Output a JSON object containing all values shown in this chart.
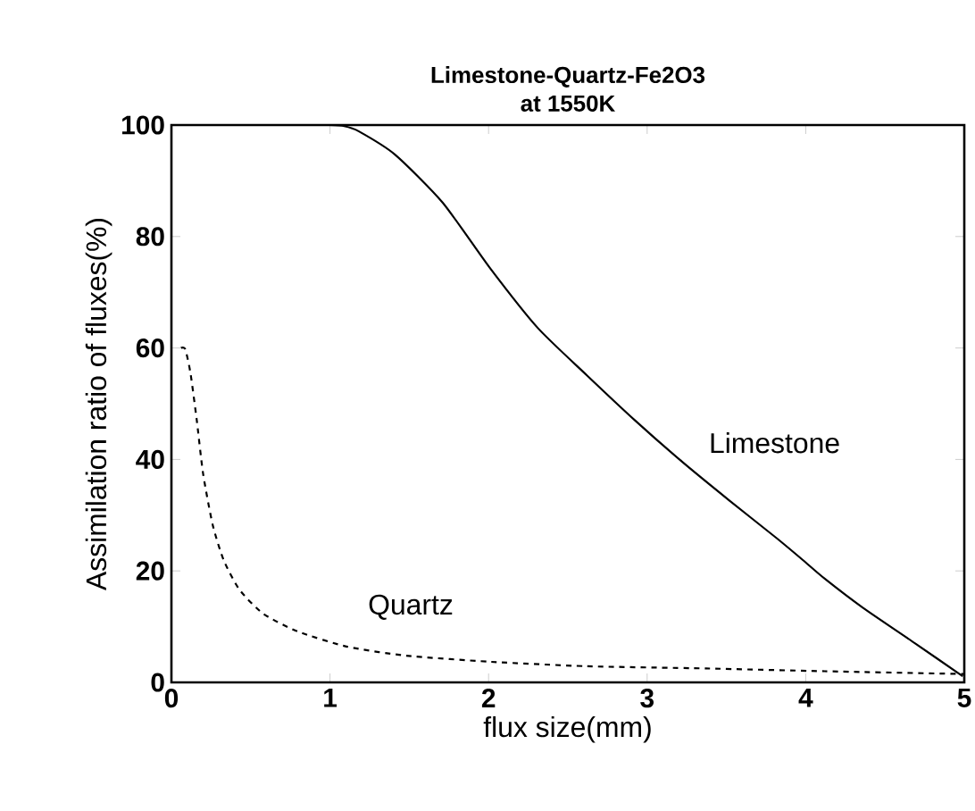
{
  "chart_data": {
    "type": "line",
    "title": "Limestone-Quartz-Fe2O3",
    "subtitle": "at 1550K",
    "xlabel": "flux size(mm)",
    "ylabel": "Assimilation ratio of fluxes(%)",
    "xlim": [
      0,
      5
    ],
    "ylim": [
      0,
      100
    ],
    "xticks": [
      0,
      1,
      2,
      3,
      4,
      5
    ],
    "yticks": [
      0,
      20,
      40,
      60,
      80,
      100
    ],
    "grid": false,
    "series": [
      {
        "name": "Limestone",
        "color": "#000000",
        "line_style": "solid",
        "x": [
          1.0,
          1.09,
          1.18,
          1.41,
          1.71,
          2.01,
          2.31,
          2.62,
          2.92,
          3.22,
          3.52,
          3.82,
          3.98,
          4.12,
          4.36,
          4.69,
          4.99
        ],
        "values": [
          100,
          99.8,
          98.9,
          94.7,
          86.1,
          74.3,
          63.6,
          55.1,
          47.1,
          39.6,
          32.6,
          25.8,
          22.0,
          18.6,
          13.4,
          7.0,
          1.1
        ]
      },
      {
        "name": "Quartz",
        "color": "#000000",
        "line_style": "dashed",
        "x": [
          0.06,
          0.087,
          0.12,
          0.16,
          0.2,
          0.26,
          0.33,
          0.43,
          0.58,
          0.8,
          1.11,
          1.48,
          2.01,
          2.62,
          3.37,
          4.12,
          5.0
        ],
        "values": [
          60,
          59.8,
          55.5,
          47,
          37.4,
          28.3,
          21.9,
          16.6,
          12.3,
          9.1,
          6.4,
          4.8,
          3.7,
          2.9,
          2.5,
          2.0,
          1.5
        ]
      }
    ]
  }
}
